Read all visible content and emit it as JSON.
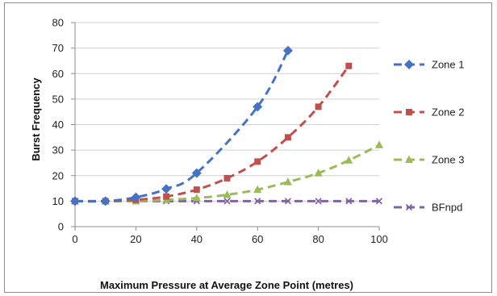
{
  "chart_data": {
    "type": "line",
    "title": "",
    "xlabel": "Maximum Pressure at Average Zone Point (metres)",
    "ylabel": "Burst Frequency",
    "xlim": [
      0,
      100
    ],
    "ylim": [
      0,
      80
    ],
    "xticks": [
      0,
      20,
      40,
      60,
      80,
      100
    ],
    "yticks": [
      0,
      10,
      20,
      30,
      40,
      50,
      60,
      70,
      80
    ],
    "grid": true,
    "legend_position": "right",
    "series": [
      {
        "name": "Zone 1",
        "color": "#4472C4",
        "marker": "diamond",
        "x": [
          0,
          10,
          20,
          30,
          40,
          60,
          70
        ],
        "y": [
          10,
          10,
          11.5,
          14.8,
          21,
          47,
          69
        ]
      },
      {
        "name": "Zone 2",
        "color": "#C0504D",
        "marker": "square",
        "x": [
          0,
          10,
          20,
          30,
          40,
          50,
          60,
          70,
          80,
          90
        ],
        "y": [
          10,
          10,
          10.5,
          11.8,
          14.5,
          19,
          25.5,
          35,
          47,
          63
        ]
      },
      {
        "name": "Zone 3",
        "color": "#9BBB59",
        "marker": "triangle",
        "x": [
          0,
          10,
          20,
          30,
          40,
          50,
          60,
          70,
          80,
          90,
          100
        ],
        "y": [
          10,
          10,
          10,
          10.5,
          11.2,
          12.5,
          14.5,
          17.5,
          21,
          26,
          32
        ]
      },
      {
        "name": "BFnpd",
        "color": "#8064A2",
        "marker": "x",
        "x": [
          0,
          10,
          20,
          30,
          40,
          50,
          60,
          70,
          80,
          90,
          100
        ],
        "y": [
          10,
          10,
          10,
          10,
          10,
          10,
          10,
          10,
          10,
          10,
          10
        ]
      }
    ]
  }
}
